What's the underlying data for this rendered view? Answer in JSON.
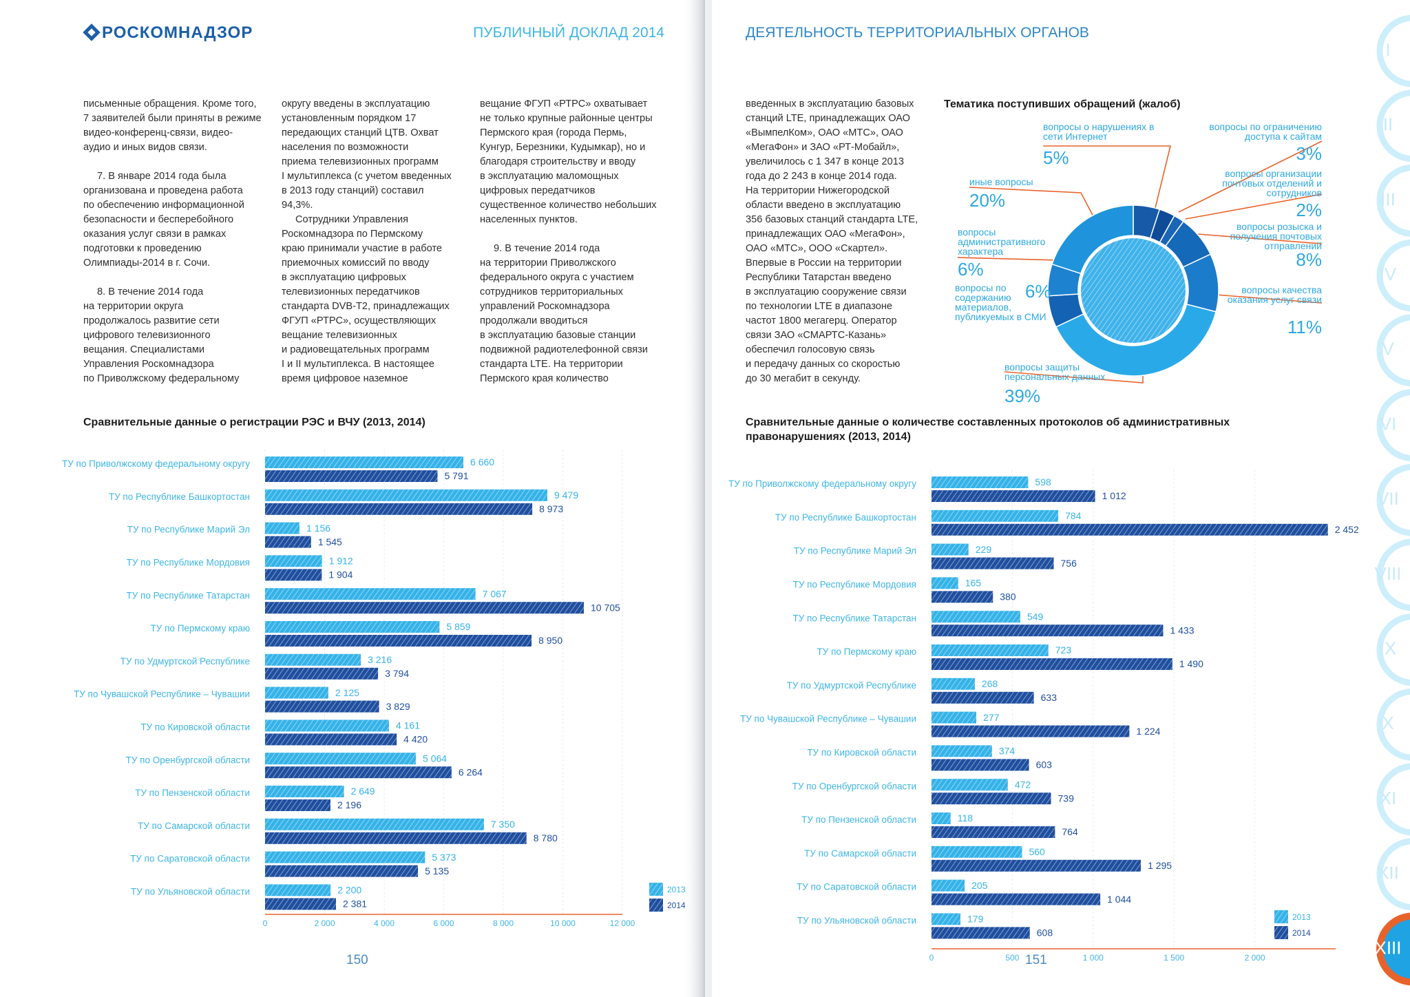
{
  "header": {
    "logo": "РОСКОМНАДЗОР",
    "left_title": "ПУБЛИЧНЫЙ ДОКЛАД 2014",
    "right_title": "ДЕЯТЕЛЬНОСТЬ ТЕРРИТОРИАЛЬНЫХ ОРГАНОВ"
  },
  "text_columns": [
    [
      [
        "письменные обращения. Кроме того,",
        "7 заявителей были приняты в режиме",
        "видео-конференц-связи, видео-",
        "аудио и иных видов связи."
      ],
      [
        "7. В январе 2014 года была",
        "организована и проведена работа",
        "по обеспечению информационной",
        "безопасности и бесперебойного",
        "оказания услуг связи в рамках",
        "подготовки к проведению",
        "Олимпиады-2014 в г. Сочи."
      ],
      [
        "8. В течение 2014 года",
        "на территории округа",
        "продолжалось развитие сети",
        "цифрового телевизионного",
        "вещания. Специалистами",
        "Управления Роскомнадзора",
        "по Приволжскому федеральному"
      ]
    ],
    [
      [
        "округу введены в эксплуатацию",
        "установленным порядком 17",
        "передающих станций ЦТВ. Охват",
        "населения по возможности",
        "приема телевизионных программ",
        "I мультиплекса (с учетом введенных",
        "в 2013 году станций) составил",
        "94,3%."
      ],
      [
        "Сотрудники Управления",
        "Роскомнадзора по Пермскому",
        "краю принимали участие в работе",
        "приемочных комиссий по вводу",
        "в эксплуатацию цифровых",
        "телевизионных передатчиков",
        "стандарта DVB-T2, принадлежащих",
        "ФГУП «РТРС», осуществляющих",
        "вещание телевизионных",
        "и радиовещательных программ",
        "I и II мультиплекса. В настоящее",
        "время цифровое наземное"
      ]
    ],
    [
      [
        "вещание ФГУП «РТРС» охватывает",
        "не только крупные районные центры",
        "Пермского края (города Пермь,",
        "Кунгур, Березники, Кудымкар), но и",
        "благодаря строительству и вводу",
        "в эксплуатацию маломощных",
        "цифровых передатчиков",
        "существенное количество небольших",
        "населенных пунктов."
      ],
      [
        "9. В течение 2014 года",
        "на территории Приволжского",
        "федерального округа с участием",
        "сотрудников территориальных",
        "управлений Роскомнадзора",
        "продолжали вводиться",
        "в эксплуатацию базовые станции",
        "подвижной радиотелефонной связи",
        "стандарта LTE. На территории",
        "Пермского края количество"
      ]
    ],
    [
      [
        "введенных в эксплуатацию базовых",
        "станций LTE, принадлежащих ОАО",
        "«ВымпелКом», ОАО «МТС», ОАО",
        "«МегаФон» и ЗАО «РТ-Мобайл»,",
        "увеличилось с 1 347 в конце 2013",
        "года до 2 243 в конце 2014 года.",
        "На территории Нижегородской",
        "области введено в эксплуатацию",
        "356 базовых станций стандарта LTE,",
        "принадлежащих ОАО «МегаФон»,",
        "ОАО «МТС», ООО «Скартел».",
        "Впервые в России на территории",
        "Республики Татарстан введено",
        "в эксплуатацию сооружение связи",
        "по технологии LTE в диапазоне",
        "частот 1800 мегагерц. Оператор",
        "связи ЗАО «СМАРТС-Казань»",
        "обеспечил голосовую связь",
        "и передачу данных со скоростью",
        "до 30 мегабит в секунду."
      ]
    ]
  ],
  "chart_data": [
    {
      "type": "bar",
      "title": "Сравнительные данные о регистрации РЭС и ВЧУ (2013, 2014)",
      "categories": [
        "ТУ по Приволжскому федеральному округу",
        "ТУ по Республике Башкортостан",
        "ТУ по Республике Марий Эл",
        "ТУ по Республике Мордовия",
        "ТУ по Республике Татарстан",
        "ТУ по Пермскому краю",
        "ТУ по Удмуртской Республике",
        "ТУ по Чувашской Республике – Чувашии",
        "ТУ по Кировской области",
        "ТУ по Оренбургской области",
        "ТУ по Пензенской области",
        "ТУ по Самарской области",
        "ТУ по Саратовской области",
        "ТУ по Ульяновской области"
      ],
      "series": [
        {
          "name": "2013",
          "color": "#35b3e8",
          "values": [
            6660,
            9479,
            1156,
            1912,
            7067,
            5859,
            3216,
            2125,
            4161,
            5064,
            2649,
            7350,
            5373,
            2200
          ],
          "value_labels": [
            "6 660",
            "9 479",
            "1 156",
            "1 912",
            "7 067",
            "5 859",
            "3 216",
            "2 125",
            "4 161",
            "5 064",
            "2 649",
            "7 350",
            "5 373",
            "2 200"
          ]
        },
        {
          "name": "2014",
          "color": "#1f4f9f",
          "values": [
            5791,
            8973,
            1545,
            1904,
            10705,
            8950,
            3794,
            3829,
            4420,
            6264,
            2196,
            8780,
            5135,
            2381
          ],
          "value_labels": [
            "5 791",
            "8 973",
            "1 545",
            "1 904",
            "10 705",
            "8 950",
            "3 794",
            "3 829",
            "4 420",
            "6 264",
            "2 196",
            "8 780",
            "5 135",
            "2 381"
          ]
        }
      ],
      "xlim": [
        0,
        12000
      ],
      "xticks": [
        0,
        {
          "value": 2000,
          "label": "2 000"
        },
        {
          "value": 4000,
          "label": "4 000"
        },
        {
          "value": 6000,
          "label": "6 000"
        },
        {
          "value": 8000,
          "label": "8 000"
        },
        {
          "value": 10000,
          "label": "10 000"
        },
        {
          "value": 12000,
          "label": "12 000"
        }
      ],
      "grid": true
    },
    {
      "type": "pie",
      "title": "Тематика поступивших обращений (жалоб)",
      "categories": [
        "вопросы о нарушениях в сети Интернет",
        "вопросы по ограничению доступа к сайтам",
        "вопросы организации почтовых отделений и сотрудников",
        "вопросы розыска и получения почтовых отправлений",
        "вопросы качества оказания услуг связи",
        "вопросы защиты персональных данных",
        "вопросы по содержанию материалов, публикуемых в СМИ",
        "вопросы административного характера",
        "иные вопросы"
      ],
      "values": [
        5,
        3,
        2,
        8,
        11,
        39,
        6,
        6,
        20
      ],
      "value_labels": [
        "5%",
        "3%",
        "2%",
        "8%",
        "11%",
        "39%",
        "6%",
        "6%",
        "20%"
      ],
      "colors": [
        "#175ba8",
        "#0f4c98",
        "#1a66b6",
        "#1569b9",
        "#1b7ccc",
        "#2aa9e8",
        "#1462b3",
        "#1d82d0",
        "#1f94dd"
      ]
    },
    {
      "type": "bar",
      "title": "Сравнительные данные о количестве составленных протоколов об административных правонарушениях (2013, 2014)",
      "categories": [
        "ТУ по Приволжскому федеральному округу",
        "ТУ по Республике Башкортостан",
        "ТУ по Республике Марий Эл",
        "ТУ по Республике Мордовия",
        "ТУ по Республике Татарстан",
        "ТУ по Пермскому краю",
        "ТУ по Удмуртской Республике",
        "ТУ по Чувашской Республике – Чувашии",
        "ТУ по Кировской области",
        "ТУ по Оренбургской области",
        "ТУ по Пензенской области",
        "ТУ по Самарской области",
        "ТУ по Саратовской области",
        "ТУ по Ульяновской области"
      ],
      "series": [
        {
          "name": "2013",
          "color": "#35b3e8",
          "values": [
            598,
            784,
            229,
            165,
            549,
            723,
            268,
            277,
            374,
            472,
            118,
            560,
            205,
            179
          ],
          "value_labels": [
            "598",
            "784",
            "229",
            "165",
            "549",
            "723",
            "268",
            "277",
            "374",
            "472",
            "118",
            "560",
            "205",
            "179"
          ]
        },
        {
          "name": "2014",
          "color": "#1f4f9f",
          "values": [
            1012,
            2452,
            756,
            380,
            1433,
            1490,
            633,
            1224,
            603,
            739,
            764,
            1295,
            1044,
            608
          ],
          "value_labels": [
            "1 012",
            "2 452",
            "756",
            "380",
            "1 433",
            "1 490",
            "633",
            "1 224",
            "603",
            "739",
            "764",
            "1 295",
            "1 044",
            "608"
          ]
        }
      ],
      "xlim": [
        0,
        2500
      ],
      "xticks": [
        0,
        500,
        {
          "value": 1000,
          "label": "1 000"
        },
        {
          "value": 1500,
          "label": "1 500"
        },
        {
          "value": 2000,
          "label": "2 000"
        }
      ],
      "grid": true
    }
  ],
  "page_numbers": [
    "150",
    "151"
  ],
  "section_tabs": [
    "I",
    "II",
    "III",
    "IV",
    "V",
    "VI",
    "VII",
    "VIII",
    "IX",
    "X",
    "XI",
    "XII",
    "XIII"
  ]
}
